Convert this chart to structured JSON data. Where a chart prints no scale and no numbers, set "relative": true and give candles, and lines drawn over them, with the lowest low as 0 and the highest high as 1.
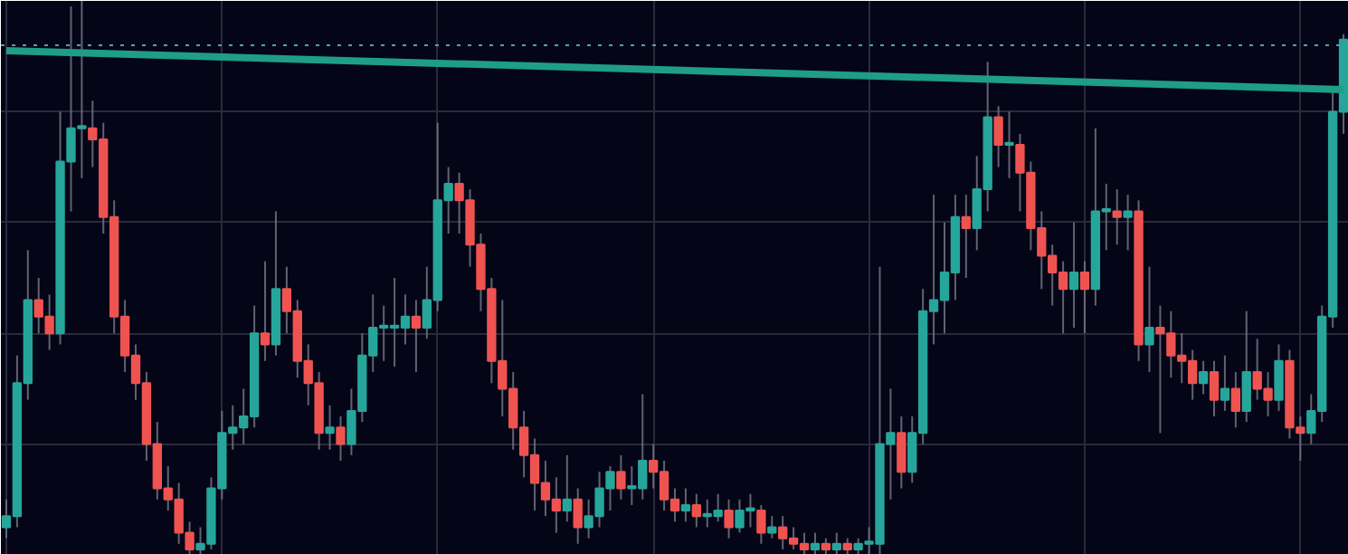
{
  "chart_data": {
    "type": "candlestick",
    "relative": true,
    "grid": true,
    "categories": [
      null,
      null,
      null,
      null,
      null,
      null,
      null,
      null,
      null,
      null,
      null,
      null,
      null,
      null,
      null,
      null,
      null,
      null,
      null,
      null,
      null,
      null,
      null,
      null,
      null,
      null,
      null,
      null,
      null,
      null,
      null,
      null,
      null,
      null,
      null,
      null,
      null,
      null,
      null,
      null,
      null,
      null,
      null,
      null,
      null,
      null,
      null,
      null,
      null,
      null,
      null,
      null,
      null,
      null,
      null,
      null,
      null,
      null,
      null,
      null,
      null,
      null,
      null,
      null,
      null,
      null,
      null,
      null,
      null,
      null,
      null,
      null,
      null,
      null,
      null,
      null,
      null,
      null,
      null,
      null,
      null,
      null,
      null,
      null,
      null,
      null,
      null,
      null,
      null,
      null,
      null,
      null,
      null,
      null,
      null,
      null,
      null,
      null,
      null,
      null,
      null,
      null,
      null,
      null,
      null,
      null,
      null,
      null,
      null,
      null,
      null,
      null,
      null,
      null,
      null,
      null,
      null,
      null,
      null,
      null,
      null,
      null,
      null,
      null,
      null
    ],
    "ohlc": [
      [
        0.05,
        0.1,
        0.03,
        0.07
      ],
      [
        0.07,
        0.36,
        0.05,
        0.31
      ],
      [
        0.31,
        0.55,
        0.28,
        0.46
      ],
      [
        0.46,
        0.5,
        0.4,
        0.43
      ],
      [
        0.43,
        0.47,
        0.37,
        0.4
      ],
      [
        0.4,
        0.8,
        0.38,
        0.71
      ],
      [
        0.71,
        0.99,
        0.62,
        0.77
      ],
      [
        0.77,
        1,
        0.68,
        0.77
      ],
      [
        0.77,
        0.82,
        0.7,
        0.75
      ],
      [
        0.75,
        0.78,
        0.58,
        0.61
      ],
      [
        0.61,
        0.64,
        0.4,
        0.43
      ],
      [
        0.43,
        0.46,
        0.33,
        0.36
      ],
      [
        0.36,
        0.38,
        0.28,
        0.31
      ],
      [
        0.31,
        0.33,
        0.17,
        0.2
      ],
      [
        0.2,
        0.24,
        0.1,
        0.12
      ],
      [
        0.12,
        0.16,
        0.08,
        0.1
      ],
      [
        0.1,
        0.13,
        0.02,
        0.04
      ],
      [
        0.04,
        0.06,
        0,
        0.01
      ],
      [
        0.01,
        0.05,
        0,
        0.02
      ],
      [
        0.02,
        0.14,
        0.01,
        0.12
      ],
      [
        0.12,
        0.26,
        0.1,
        0.22
      ],
      [
        0.22,
        0.27,
        0.19,
        0.23
      ],
      [
        0.23,
        0.3,
        0.2,
        0.25
      ],
      [
        0.25,
        0.45,
        0.23,
        0.4
      ],
      [
        0.4,
        0.53,
        0.35,
        0.38
      ],
      [
        0.38,
        0.62,
        0.36,
        0.48
      ],
      [
        0.48,
        0.52,
        0.4,
        0.44
      ],
      [
        0.44,
        0.46,
        0.32,
        0.35
      ],
      [
        0.35,
        0.38,
        0.27,
        0.31
      ],
      [
        0.31,
        0.33,
        0.19,
        0.22
      ],
      [
        0.22,
        0.27,
        0.19,
        0.23
      ],
      [
        0.23,
        0.25,
        0.17,
        0.2
      ],
      [
        0.2,
        0.3,
        0.18,
        0.26
      ],
      [
        0.26,
        0.4,
        0.24,
        0.36
      ],
      [
        0.36,
        0.47,
        0.33,
        0.41
      ],
      [
        0.41,
        0.45,
        0.35,
        0.41
      ],
      [
        0.41,
        0.5,
        0.34,
        0.41
      ],
      [
        0.41,
        0.47,
        0.38,
        0.43
      ],
      [
        0.43,
        0.46,
        0.33,
        0.41
      ],
      [
        0.41,
        0.52,
        0.39,
        0.46
      ],
      [
        0.46,
        0.78,
        0.44,
        0.64
      ],
      [
        0.64,
        0.7,
        0.58,
        0.67
      ],
      [
        0.67,
        0.69,
        0.58,
        0.64
      ],
      [
        0.64,
        0.66,
        0.52,
        0.56
      ],
      [
        0.56,
        0.58,
        0.44,
        0.48
      ],
      [
        0.48,
        0.5,
        0.31,
        0.35
      ],
      [
        0.35,
        0.46,
        0.25,
        0.3
      ],
      [
        0.3,
        0.33,
        0.19,
        0.23
      ],
      [
        0.23,
        0.26,
        0.14,
        0.18
      ],
      [
        0.18,
        0.21,
        0.08,
        0.13
      ],
      [
        0.13,
        0.17,
        0.07,
        0.1
      ],
      [
        0.1,
        0.14,
        0.04,
        0.08
      ],
      [
        0.08,
        0.18,
        0.06,
        0.1
      ],
      [
        0.1,
        0.12,
        0.02,
        0.05
      ],
      [
        0.05,
        0.1,
        0.03,
        0.07
      ],
      [
        0.07,
        0.15,
        0.05,
        0.12
      ],
      [
        0.12,
        0.16,
        0.08,
        0.15
      ],
      [
        0.15,
        0.18,
        0.1,
        0.12
      ],
      [
        0.12,
        0.16,
        0.09,
        0.12
      ],
      [
        0.12,
        0.29,
        0.1,
        0.17
      ],
      [
        0.17,
        0.2,
        0.12,
        0.15
      ],
      [
        0.15,
        0.17,
        0.08,
        0.1
      ],
      [
        0.1,
        0.12,
        0.06,
        0.08
      ],
      [
        0.08,
        0.12,
        0.06,
        0.09
      ],
      [
        0.09,
        0.11,
        0.05,
        0.07
      ],
      [
        0.07,
        0.1,
        0.05,
        0.07
      ],
      [
        0.07,
        0.11,
        0.06,
        0.08
      ],
      [
        0.08,
        0.1,
        0.03,
        0.05
      ],
      [
        0.05,
        0.1,
        0.04,
        0.08
      ],
      [
        0.08,
        0.11,
        0.05,
        0.08
      ],
      [
        0.08,
        0.09,
        0.02,
        0.04
      ],
      [
        0.04,
        0.07,
        0.03,
        0.05
      ],
      [
        0.05,
        0.07,
        0.01,
        0.03
      ],
      [
        0.03,
        0.05,
        0.01,
        0.02
      ],
      [
        0.02,
        0.04,
        0,
        0.01
      ],
      [
        0.01,
        0.04,
        0,
        0.02
      ],
      [
        0.02,
        0.03,
        0,
        0.01
      ],
      [
        0.01,
        0.04,
        0,
        0.02
      ],
      [
        0.02,
        0.03,
        0,
        0.01
      ],
      [
        0.01,
        0.03,
        0,
        0.02
      ],
      [
        0.02,
        0.05,
        0,
        0.02
      ],
      [
        0.02,
        0.52,
        0,
        0.2
      ],
      [
        0.2,
        0.3,
        0.1,
        0.22
      ],
      [
        0.22,
        0.25,
        0.12,
        0.15
      ],
      [
        0.15,
        0.25,
        0.13,
        0.22
      ],
      [
        0.22,
        0.48,
        0.2,
        0.44
      ],
      [
        0.44,
        0.65,
        0.38,
        0.46
      ],
      [
        0.46,
        0.6,
        0.4,
        0.51
      ],
      [
        0.51,
        0.65,
        0.46,
        0.61
      ],
      [
        0.61,
        0.65,
        0.5,
        0.59
      ],
      [
        0.59,
        0.72,
        0.55,
        0.66
      ],
      [
        0.66,
        0.89,
        0.62,
        0.79
      ],
      [
        0.79,
        0.81,
        0.7,
        0.74
      ],
      [
        0.74,
        0.8,
        0.68,
        0.74
      ],
      [
        0.74,
        0.76,
        0.62,
        0.69
      ],
      [
        0.69,
        0.71,
        0.55,
        0.59
      ],
      [
        0.59,
        0.62,
        0.48,
        0.54
      ],
      [
        0.54,
        0.56,
        0.45,
        0.51
      ],
      [
        0.51,
        0.53,
        0.4,
        0.48
      ],
      [
        0.48,
        0.6,
        0.41,
        0.51
      ],
      [
        0.51,
        0.53,
        0.4,
        0.48
      ],
      [
        0.48,
        0.77,
        0.45,
        0.62
      ],
      [
        0.62,
        0.67,
        0.55,
        0.62
      ],
      [
        0.62,
        0.66,
        0.56,
        0.61
      ],
      [
        0.61,
        0.65,
        0.55,
        0.62
      ],
      [
        0.62,
        0.64,
        0.35,
        0.38
      ],
      [
        0.38,
        0.52,
        0.33,
        0.41
      ],
      [
        0.41,
        0.45,
        0.22,
        0.4
      ],
      [
        0.4,
        0.44,
        0.32,
        0.36
      ],
      [
        0.36,
        0.4,
        0.31,
        0.35
      ],
      [
        0.35,
        0.37,
        0.28,
        0.31
      ],
      [
        0.31,
        0.35,
        0.29,
        0.33
      ],
      [
        0.33,
        0.35,
        0.25,
        0.28
      ],
      [
        0.28,
        0.36,
        0.26,
        0.3
      ],
      [
        0.3,
        0.33,
        0.23,
        0.26
      ],
      [
        0.26,
        0.44,
        0.24,
        0.33
      ],
      [
        0.33,
        0.39,
        0.28,
        0.3
      ],
      [
        0.3,
        0.33,
        0.25,
        0.28
      ],
      [
        0.28,
        0.38,
        0.26,
        0.35
      ],
      [
        0.35,
        0.37,
        0.21,
        0.23
      ],
      [
        0.23,
        0.25,
        0.17,
        0.22
      ],
      [
        0.22,
        0.29,
        0.2,
        0.26
      ],
      [
        0.26,
        0.45,
        0.24,
        0.43
      ],
      [
        0.43,
        0.84,
        0.41,
        0.8
      ],
      [
        0.8,
        0.94,
        0.76,
        0.93
      ]
    ],
    "series": [
      {
        "type": "line",
        "color": "#1e9e87",
        "values": [
          0.91,
          null,
          null,
          null,
          null,
          null,
          null,
          null,
          null,
          null,
          null,
          null,
          null,
          null,
          null,
          null,
          null,
          null,
          null,
          null,
          null,
          null,
          null,
          null,
          null,
          null,
          null,
          null,
          null,
          null,
          null,
          null,
          null,
          null,
          null,
          null,
          null,
          null,
          null,
          null,
          null,
          null,
          null,
          null,
          null,
          null,
          null,
          null,
          null,
          null,
          null,
          null,
          null,
          null,
          null,
          null,
          null,
          null,
          null,
          null,
          null,
          null,
          null,
          null,
          null,
          null,
          null,
          null,
          null,
          null,
          null,
          null,
          null,
          null,
          null,
          null,
          null,
          null,
          null,
          null,
          null,
          null,
          null,
          null,
          null,
          null,
          null,
          null,
          null,
          null,
          null,
          null,
          null,
          null,
          null,
          null,
          null,
          null,
          null,
          null,
          null,
          null,
          null,
          null,
          null,
          null,
          null,
          null,
          null,
          null,
          null,
          null,
          null,
          null,
          null,
          null,
          null,
          null,
          null,
          null,
          null,
          null,
          null,
          null,
          0.84
        ]
      }
    ],
    "ref_lines": [
      {
        "axis": "y",
        "value": 0.92,
        "color": "#4fa3a5",
        "line_style": "dotted"
      }
    ]
  }
}
